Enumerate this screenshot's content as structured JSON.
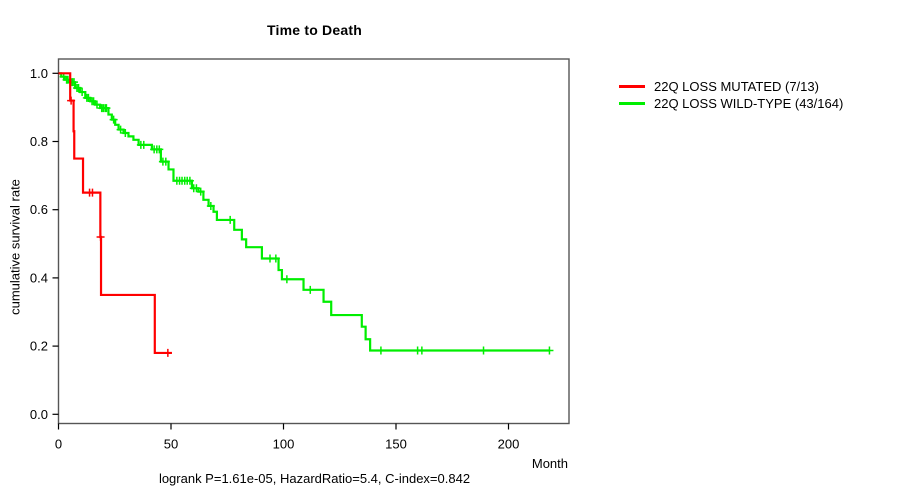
{
  "chart_data": {
    "type": "line",
    "subtype": "kaplan-meier-step",
    "title": "Time to Death",
    "xlabel": "Month",
    "ylabel": "cumulative survival rate",
    "annotation": "logrank P=1.61e-05, HazardRatio=5.4, C-index=0.842",
    "xlim": [
      0,
      225
    ],
    "ylim": [
      0,
      1
    ],
    "xticks": [
      0,
      50,
      100,
      150,
      200
    ],
    "yticks": [
      0,
      0.2,
      0.4,
      0.6,
      0.8,
      1
    ],
    "grid": false,
    "legend_position": "right-outside",
    "axis_color": "#000000",
    "box_color": "#555555",
    "series": [
      {
        "name": "22Q LOSS MUTATED (7/13)",
        "color": "#ff0000",
        "steps": [
          [
            0,
            1.0
          ],
          [
            5.2,
            0.92
          ],
          [
            6.7,
            0.83
          ],
          [
            7.0,
            0.75
          ],
          [
            10.9,
            0.65
          ],
          [
            18.6,
            0.52
          ],
          [
            18.9,
            0.35
          ],
          [
            42.8,
            0.18
          ]
        ],
        "end_month": 50.4,
        "censors": [
          [
            5.6,
            0.92
          ],
          [
            13.8,
            0.65
          ],
          [
            15.1,
            0.65
          ],
          [
            18.7,
            0.52
          ],
          [
            48.6,
            0.18
          ]
        ]
      },
      {
        "name": "22Q LOSS WILD-TYPE (43/164)",
        "color": "#00ee00",
        "steps": [
          [
            0,
            1.0
          ],
          [
            1.2,
            0.99
          ],
          [
            2.8,
            0.981
          ],
          [
            4.8,
            0.974
          ],
          [
            7.4,
            0.957
          ],
          [
            9.6,
            0.945
          ],
          [
            11.9,
            0.928
          ],
          [
            14.1,
            0.918
          ],
          [
            16.3,
            0.908
          ],
          [
            18.5,
            0.898
          ],
          [
            22.2,
            0.879
          ],
          [
            23.7,
            0.864
          ],
          [
            25.2,
            0.849
          ],
          [
            26.7,
            0.835
          ],
          [
            28.9,
            0.825
          ],
          [
            31.1,
            0.815
          ],
          [
            33.3,
            0.805
          ],
          [
            35.6,
            0.79
          ],
          [
            41.5,
            0.777
          ],
          [
            45.5,
            0.741
          ],
          [
            48.9,
            0.718
          ],
          [
            51.1,
            0.685
          ],
          [
            59.3,
            0.663
          ],
          [
            62.2,
            0.653
          ],
          [
            64.4,
            0.629
          ],
          [
            66.7,
            0.611
          ],
          [
            68.9,
            0.594
          ],
          [
            70.4,
            0.57
          ],
          [
            78.1,
            0.541
          ],
          [
            81.5,
            0.513
          ],
          [
            83.4,
            0.49
          ],
          [
            90.4,
            0.457
          ],
          [
            97.8,
            0.423
          ],
          [
            99.3,
            0.396
          ],
          [
            108.9,
            0.365
          ],
          [
            117.8,
            0.33
          ],
          [
            121.2,
            0.291
          ],
          [
            134.8,
            0.257
          ],
          [
            136.5,
            0.22
          ],
          [
            138.5,
            0.187
          ]
        ],
        "end_month": 218.5,
        "censors": [
          [
            2.3,
            0.99
          ],
          [
            3.6,
            0.981
          ],
          [
            4.2,
            0.981
          ],
          [
            5.5,
            0.974
          ],
          [
            6.2,
            0.974
          ],
          [
            6.9,
            0.974
          ],
          [
            8.2,
            0.957
          ],
          [
            8.9,
            0.957
          ],
          [
            10.5,
            0.945
          ],
          [
            12.6,
            0.928
          ],
          [
            13.3,
            0.928
          ],
          [
            14.9,
            0.918
          ],
          [
            15.6,
            0.918
          ],
          [
            17.1,
            0.908
          ],
          [
            19.2,
            0.898
          ],
          [
            19.9,
            0.898
          ],
          [
            20.7,
            0.898
          ],
          [
            21.3,
            0.898
          ],
          [
            24.5,
            0.864
          ],
          [
            27.6,
            0.835
          ],
          [
            29.7,
            0.825
          ],
          [
            36.6,
            0.79
          ],
          [
            37.9,
            0.79
          ],
          [
            42.5,
            0.777
          ],
          [
            43.7,
            0.777
          ],
          [
            44.8,
            0.777
          ],
          [
            46.4,
            0.741
          ],
          [
            47.7,
            0.741
          ],
          [
            52.6,
            0.685
          ],
          [
            53.8,
            0.685
          ],
          [
            54.9,
            0.685
          ],
          [
            56.1,
            0.685
          ],
          [
            57.2,
            0.685
          ],
          [
            58.4,
            0.685
          ],
          [
            60.1,
            0.663
          ],
          [
            61.3,
            0.663
          ],
          [
            63.2,
            0.653
          ],
          [
            67.7,
            0.611
          ],
          [
            76.3,
            0.57
          ],
          [
            94.0,
            0.457
          ],
          [
            96.6,
            0.457
          ],
          [
            101.5,
            0.396
          ],
          [
            111.9,
            0.365
          ],
          [
            143.3,
            0.187
          ],
          [
            159.6,
            0.187
          ],
          [
            161.5,
            0.187
          ],
          [
            188.9,
            0.187
          ],
          [
            218.2,
            0.187
          ]
        ]
      }
    ]
  }
}
